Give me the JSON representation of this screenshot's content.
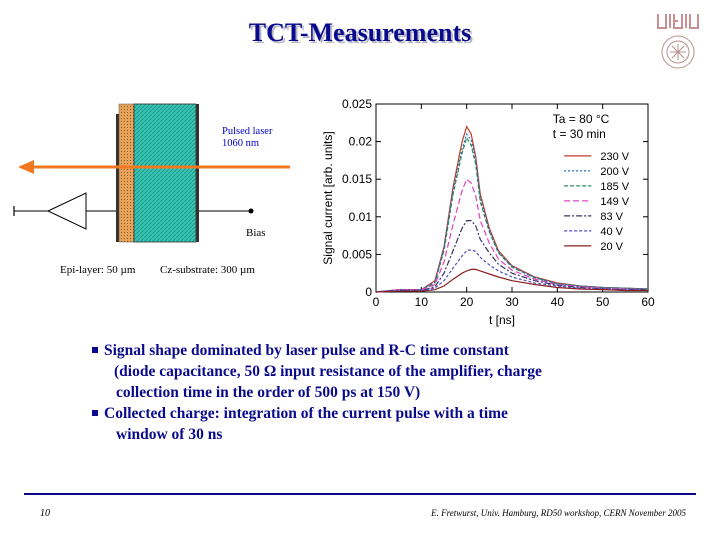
{
  "title": "TCT-Measurements",
  "diagram": {
    "laser_label_line1": "Pulsed laser",
    "laser_label_line2": "1060 nm",
    "bias_label": "Bias",
    "epi_label": "Epi-layer: 50 µm",
    "cz_label": "Cz-substrate: 300 µm",
    "colors": {
      "epi": "#e8a45a",
      "substrate": "#36c4b4",
      "laser": "#f07820"
    }
  },
  "chart_data": {
    "type": "line",
    "xlabel": "t [ns]",
    "ylabel": "Signal current  [arb. units]",
    "xlim": [
      0,
      60
    ],
    "ylim": [
      0,
      0.025
    ],
    "xticks": [
      "0",
      "10",
      "20",
      "30",
      "40",
      "50",
      "60"
    ],
    "yticks": [
      "0",
      "0.005",
      "0.01",
      "0.015",
      "0.02",
      "0.025"
    ],
    "annotation_line1": "Ta = 80 °C",
    "annotation_line2": "t = 30 min",
    "legend_position": "right",
    "x": [
      0,
      5,
      10,
      13,
      15,
      17,
      19,
      20,
      21,
      22,
      23,
      25,
      27,
      30,
      35,
      40,
      45,
      50,
      55,
      60
    ],
    "series": [
      {
        "name": "230 V",
        "color": "#c0392b",
        "dash": "",
        "values": [
          0,
          0.0003,
          0.0003,
          0.0015,
          0.006,
          0.014,
          0.02,
          0.022,
          0.021,
          0.018,
          0.013,
          0.0085,
          0.0055,
          0.0035,
          0.002,
          0.0012,
          0.0008,
          0.0006,
          0.0005,
          0.0004
        ]
      },
      {
        "name": "185 V",
        "color": "#2e8b57",
        "dash": "4,2",
        "values": [
          0,
          0.0003,
          0.0003,
          0.0012,
          0.0055,
          0.013,
          0.0185,
          0.0205,
          0.0195,
          0.017,
          0.012,
          0.008,
          0.0052,
          0.0033,
          0.0019,
          0.0011,
          0.0008,
          0.0006,
          0.0005,
          0.0004
        ]
      },
      {
        "name": "200 V",
        "color": "#1f6fb2",
        "dash": "2,2",
        "values": [
          0,
          0.0003,
          0.0003,
          0.0013,
          0.0058,
          0.0135,
          0.019,
          0.021,
          0.0202,
          0.0175,
          0.0125,
          0.0082,
          0.0053,
          0.0034,
          0.0019,
          0.0011,
          0.0008,
          0.0006,
          0.0005,
          0.0004
        ]
      },
      {
        "name": "149 V",
        "color": "#e040c0",
        "dash": "6,3",
        "values": [
          0,
          0.0003,
          0.0003,
          0.001,
          0.004,
          0.009,
          0.0135,
          0.015,
          0.0145,
          0.0128,
          0.0095,
          0.0065,
          0.0044,
          0.0029,
          0.0017,
          0.001,
          0.0007,
          0.0005,
          0.0004,
          0.0003
        ]
      },
      {
        "name": "83 V",
        "color": "#333366",
        "dash": "6,2,2,2",
        "values": [
          0,
          0.0002,
          0.0002,
          0.0007,
          0.0025,
          0.0055,
          0.0085,
          0.0095,
          0.0095,
          0.0088,
          0.007,
          0.0052,
          0.0037,
          0.0025,
          0.0015,
          0.0009,
          0.0006,
          0.0004,
          0.0003,
          0.0003
        ]
      },
      {
        "name": "40 V",
        "color": "#5050c8",
        "dash": "3,2",
        "values": [
          0,
          0.0002,
          0.0002,
          0.0005,
          0.0015,
          0.0032,
          0.0048,
          0.0055,
          0.0056,
          0.0054,
          0.0046,
          0.0036,
          0.0028,
          0.002,
          0.0012,
          0.0008,
          0.0005,
          0.0004,
          0.0003,
          0.0002
        ]
      },
      {
        "name": "20 V",
        "color": "#8b2020",
        "dash": "",
        "values": [
          0,
          0.0001,
          0.0001,
          0.0003,
          0.0008,
          0.0017,
          0.0025,
          0.0028,
          0.003,
          0.003,
          0.0028,
          0.0024,
          0.002,
          0.0015,
          0.001,
          0.0006,
          0.0004,
          0.0003,
          0.0002,
          0.0002
        ]
      }
    ]
  },
  "bullets": [
    {
      "line1": "Signal shape dominated by laser pulse and R-C time constant",
      "lines": [
        "(diode capacitance, 50 Ω input resistance of the amplifier, charge",
        "collection time in the order of 500 ps at 150 V)"
      ]
    },
    {
      "line1": "Collected charge: integration of the current pulse with a time",
      "lines": [
        "window of 30 ns"
      ]
    }
  ],
  "footer": {
    "page_number": "10",
    "text": "E. Fretwurst, Univ. Hamburg, RD50 workshop, CERN November 2005"
  }
}
